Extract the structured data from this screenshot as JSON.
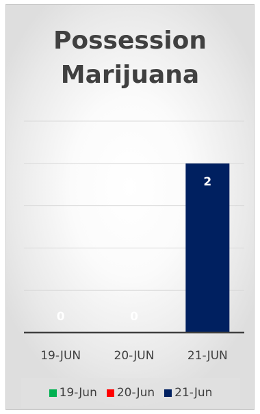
{
  "chart_data": {
    "type": "bar",
    "title_lines": [
      "Possession",
      "Marijuana"
    ],
    "categories": [
      "19-JUN",
      "20-JUN",
      "21-JUN"
    ],
    "values": [
      0,
      0,
      2
    ],
    "bar_colors": [
      "#00b050",
      "#ff0000",
      "#002060"
    ],
    "ylim": [
      0,
      2.5
    ],
    "grid": true,
    "legend": {
      "placement": "bottom",
      "entries": [
        {
          "label": "19-Jun",
          "color": "#00b050"
        },
        {
          "label": "20-Jun",
          "color": "#ff0000"
        },
        {
          "label": "21-Jun",
          "color": "#002060"
        }
      ]
    },
    "xlabel": "",
    "ylabel": ""
  }
}
